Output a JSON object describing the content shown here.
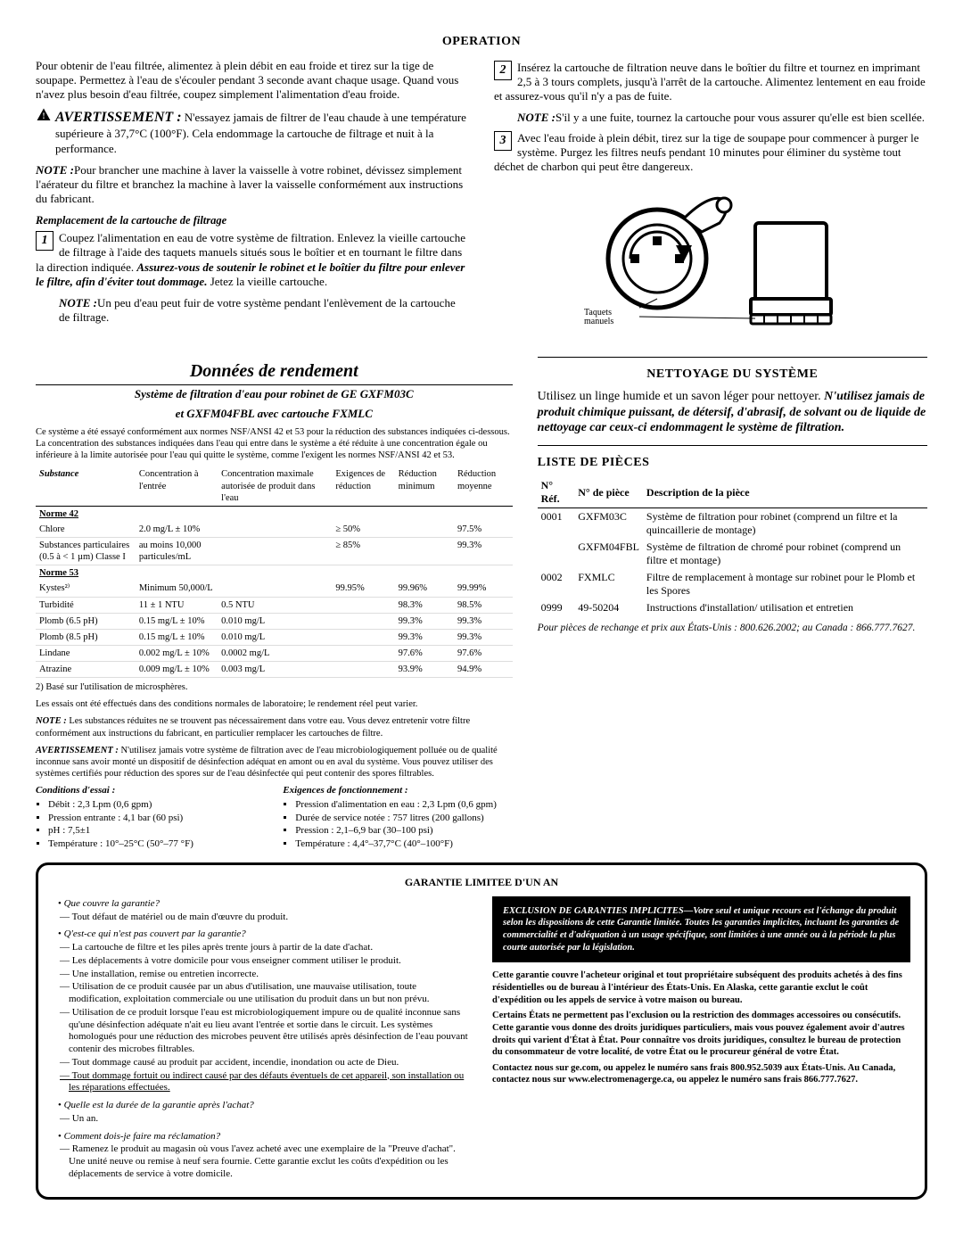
{
  "op_title": "OPERATION",
  "op_p1": "Pour obtenir de l'eau filtrée, alimentez à plein débit en eau froide et tirez sur la tige de soupape. Permettez à l'eau de s'écouler pendant 3 seconde avant chaque usage. Quand vous n'avez plus besoin d'eau filtrée, coupez simplement l'alimentation d'eau froide.",
  "warn_label": "AVERTISSEMENT :",
  "warn_text": "N'essayez jamais de filtrer de l'eau chaude à une température supérieure à 37,7°C (100°F). Cela endommage la cartouche de filtrage et nuit à la performance.",
  "note_label": "NOTE :",
  "note1": "Pour brancher une machine à laver la vaisselle à votre robinet, dévissez simplement l'aérateur du filtre et branchez la machine à laver la vaisselle conformément aux instructions du fabricant.",
  "rep_title": "Remplacement de la cartouche de filtrage",
  "step1a": "Coupez l'alimentation en eau de votre système de filtration. Enlevez la vieille cartouche de filtrage à l'aide des taquets manuels situés sous le boîtier et en tournant le filtre dans la direction indiquée. ",
  "step1b": "Assurez-vous de soutenir le robinet et le boîtier du filtre pour enlever le filtre, afin d'éviter tout dommage. ",
  "step1c": "Jetez la vieille cartouche.",
  "note2": "Un peu d'eau peut fuir de votre système pendant l'enlèvement de la cartouche de filtrage.",
  "step2": "Insérez la cartouche de filtration neuve dans le boîtier du filtre et tournez en imprimant 2,5 à 3 tours complets, jusqu'à l'arrêt de la cartouche. Alimentez lentement en eau froide et assurez-vous qu'il n'y a pas de fuite.",
  "note3": "S'il y a une fuite, tournez la cartouche pour vous assurer qu'elle est bien scellée.",
  "step3": "Avec l'eau froide à plein débit, tirez sur la tige de soupape pour commencer à purger le système. Purgez les filtres neufs pendant 10 minutes pour éliminer du système tout déchet de charbon qui peut être dangereux.",
  "diag_label": "Taquets manuels",
  "data_head": "Données de rendement",
  "data_sub1": "Système de filtration d'eau pour robinet de GE GXFM03C",
  "data_sub2": "et GXFM04FBL avec cartouche FXMLC",
  "data_intro": "Ce système a été essayé conformément aux normes NSF/ANSI 42 et 53 pour la réduction des substances indiquées ci-dessous. La concentration des substances indiquées dans l'eau qui entre dans le système a été réduite à une concentration égale ou inférieure à la limite autorisée pour l'eau qui quitte le système, comme l'exigent les normes NSF/ANSI 42 et 53.",
  "tbl_headers": [
    "Substance",
    "Concentration à l'entrée",
    "Concentration maximale autorisée de produit dans l'eau",
    "Exigences de réduction",
    "Réduction minimum",
    "Réduction moyenne"
  ],
  "norm42": "Norme 42",
  "rows42": [
    [
      "Chlore",
      "2.0 mg/L ± 10%",
      "",
      "≥ 50%",
      "",
      "97.5%"
    ],
    [
      "Substances particulaires (0.5 à < 1 µm) Classe I",
      "au moins 10,000 particules/mL",
      "",
      "≥ 85%",
      "",
      "99.3%"
    ]
  ],
  "norm53": "Norme 53",
  "rows53": [
    [
      "Kystes²⁾",
      "Minimum 50,000/L",
      "",
      "99.95%",
      "99.96%",
      "99.99%"
    ],
    [
      "Turbidité",
      "11 ± 1 NTU",
      "0.5 NTU",
      "",
      "98.3%",
      "98.5%"
    ],
    [
      "Plomb (6.5 pH)",
      "0.15 mg/L ± 10%",
      "0.010 mg/L",
      "",
      "99.3%",
      "99.3%"
    ],
    [
      "Plomb (8.5 pH)",
      "0.15 mg/L ± 10%",
      "0.010 mg/L",
      "",
      "99.3%",
      "99.3%"
    ],
    [
      "Lindane",
      "0.002 mg/L ± 10%",
      "0.0002 mg/L",
      "",
      "97.6%",
      "97.6%"
    ],
    [
      "Atrazine",
      "0.009 mg/L ± 10%",
      "0.003 mg/L",
      "",
      "93.9%",
      "94.9%"
    ]
  ],
  "foot2": "2) Basé sur l'utilisation de microsphères.",
  "foot_a": "Les essais ont été effectués dans des conditions normales de laboratoire; le rendement réel peut varier.",
  "foot_note_l": "NOTE :",
  "foot_note": "Les substances réduites ne se trouvent pas nécessairement dans votre eau. Vous devez entretenir votre filtre conformément aux instructions du fabricant, en particulier remplacer les cartouches de filtre.",
  "foot_warn_l": "AVERTISSEMENT :",
  "foot_warn": "N'utilisez jamais votre système de filtration avec de l'eau microbiologiquement polluée ou de qualité inconnue sans avoir monté un dispositif de désinfection adéquat en amont ou en aval du système. Vous pouvez utiliser des systèmes certifiés pour réduction des spores sur de l'eau désinfectée qui peut contenir des spores filtrables.",
  "cond_h": "Conditions d'essai :",
  "cond_items": [
    "Débit : 2,3 Lpm (0,6 gpm)",
    "Pression entrante : 4,1 bar (60 psi)",
    "pH : 7,5±1",
    "Température : 10°–25°C (50°–77 °F)"
  ],
  "req_h": "Exigences de fonctionnement :",
  "req_items": [
    "Pression d'alimentation en eau : 2,3 Lpm (0,6 gpm)",
    "Durée de service notée : 757 litres (200 gallons)",
    "Pression : 2,1–6,9 bar (30–100 psi)",
    "Température : 4,4°–37,7°C (40°–100°F)"
  ],
  "clean_title": "NETTOYAGE DU SYSTÈME",
  "clean_p1": "Utilisez un linge humide et un savon léger pour nettoyer. ",
  "clean_p2": "N'utilisez jamais de produit chimique puissant, de détersif, d'abrasif, de solvant ou de liquide de nettoyage car ceux-ci endommagent le système de filtration.",
  "parts_title": "LISTE DE PIÈCES",
  "parts_headers": [
    "N° Réf.",
    "N° de pièce",
    "Description de la pièce"
  ],
  "parts_rows": [
    [
      "0001",
      "GXFM03C",
      "Système de filtration pour robinet (comprend un filtre et la quincaillerie de montage)"
    ],
    [
      "",
      "GXFM04FBL",
      "Système de filtration de chromé pour robinet (comprend un filtre et montage)"
    ],
    [
      "0002",
      "FXMLC",
      "Filtre de remplacement à montage sur robinet pour le Plomb et les Spores"
    ],
    [
      "0999",
      "49-50204",
      "Instructions d'installation/ utilisation et entretien"
    ]
  ],
  "parts_note": "Pour pièces de rechange et prix aux États-Unis : 800.626.2002; au Canada : 866.777.7627.",
  "war_title": "GARANTIE LIMITEE D'UN AN",
  "w_q1": "Que couvre la garantie?",
  "w_a1_1": "Tout défaut de matériel ou de main d'œuvre du produit.",
  "w_q2": "Q'est-ce qui n'est pas couvert par la garantie?",
  "w_a2": [
    "La cartouche de filtre et les piles après trente jours à partir de la date d'achat.",
    "Les déplacements à votre domicile pour vous enseigner comment utiliser le produit.",
    "Une installation, remise ou entretien incorrecte.",
    "Utilisation de ce produit causée par un abus d'utilisation, une mauvaise utilisation, toute modification, exploitation commerciale ou une utilisation du produit dans un but non prévu.",
    "Utilisation de ce produit lorsque l'eau est microbiologiquement impure ou de qualité inconnue sans qu'une désinfection adéquate n'ait eu lieu avant l'entrée et sortie dans le circuit. Les systèmes homologués pour une réduction des microbes peuvent être utilisés après désinfection de l'eau pouvant contenir des microbes filtrables.",
    "Tout dommage causé au produit par accident, incendie, inondation ou acte de Dieu."
  ],
  "w_a2_und": "Tout dommage fortuit ou indirect causé par des défauts éventuels de cet appareil, son installation ou les réparations effectuées.",
  "w_q3": "Quelle est la durée de la garantie après l'achat?",
  "w_a3_1": "Un an.",
  "w_q4": "Comment dois-je faire ma réclamation?",
  "w_a4_1": "Ramenez le produit au magasin où vous l'avez acheté avec une exemplaire de la \"Preuve d'achat\". Une unité neuve ou remise à neuf sera fournie. Cette garantie exclut les coûts d'expédition ou les déplacements de service à votre domicile.",
  "excl": "EXCLUSION DE GARANTIES IMPLICITES—Votre seul et unique recours est l'échange du produit selon les dispositions de cette Garantie limitée. Toutes les garanties implicites, incluant les garanties de commercialité et d'adéquation à un usage spécifique, sont limitées à une année ou à la période la plus courte autorisée par la législation.",
  "w_p1": "Cette garantie couvre l'acheteur original et tout propriétaire subséquent des produits achetés à des fins résidentielles ou de bureau à l'intérieur des États-Unis. En Alaska, cette garantie exclut le coût d'expédition ou les appels de service à votre maison ou bureau.",
  "w_p2": "Certains États ne permettent pas l'exclusion ou la restriction des dommages accessoires ou consécutifs. Cette garantie vous donne des droits juridiques particuliers, mais vous pouvez également avoir d'autres droits qui varient d'État à État. Pour connaître vos droits juridiques, consultez le bureau de protection du consommateur de votre localité, de votre État ou le procureur général de votre État.",
  "w_p3": "Contactez nous sur ge.com, ou appelez le numéro sans frais 800.952.5039 aux États-Unis. Au Canada, contactez nous sur www.electromenagerge.ca, ou appelez le numéro sans frais 866.777.7627."
}
